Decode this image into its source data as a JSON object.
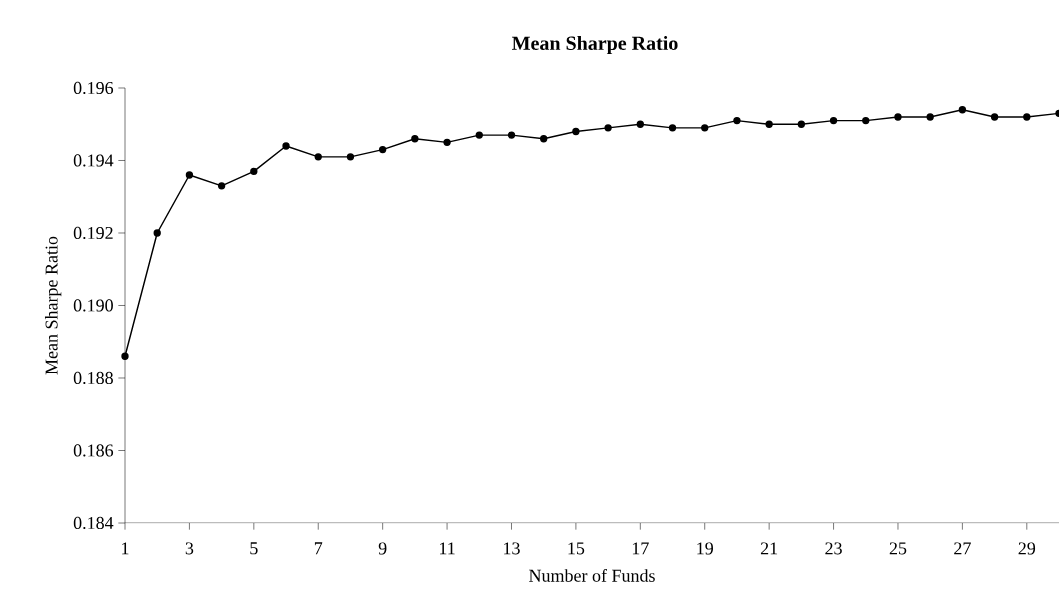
{
  "chart_data": {
    "type": "line",
    "title": "Mean Sharpe Ratio",
    "xlabel": "Number of Funds",
    "ylabel": "Mean Sharpe Ratio",
    "categories": [
      "1",
      null,
      "3",
      null,
      "5",
      null,
      "7",
      null,
      "9",
      null,
      "11",
      null,
      "13",
      null,
      "15",
      null,
      "17",
      null,
      "19",
      null,
      "21",
      null,
      "23",
      null,
      "25",
      null,
      "27",
      null,
      "29",
      null
    ],
    "series": [
      {
        "color": "#000000",
        "values": [
          0.1886,
          0.192,
          0.1936,
          0.1933,
          0.1937,
          0.1944,
          0.1941,
          0.1941,
          0.1943,
          0.1946,
          0.1945,
          0.1947,
          0.1947,
          0.1946,
          0.1948,
          0.1949,
          0.195,
          0.1949,
          0.1949,
          0.1951,
          0.195,
          0.195,
          0.1951,
          0.1951,
          0.1952,
          0.1952,
          0.1954,
          0.1952,
          0.1952,
          0.1953
        ]
      }
    ],
    "ylim": [
      0.184,
      0.196
    ],
    "yticks": [
      {
        "value": 0.184,
        "label": "0.184"
      },
      {
        "value": 0.186,
        "label": "0.186"
      },
      {
        "value": 0.188,
        "label": "0.188"
      },
      {
        "value": 0.19,
        "label": "0.190"
      },
      {
        "value": 0.192,
        "label": "0.192"
      },
      {
        "value": 0.194,
        "label": "0.194"
      },
      {
        "value": 0.196,
        "label": "0.196"
      }
    ],
    "marker": "circle",
    "line_style": "solid",
    "grid": false
  }
}
